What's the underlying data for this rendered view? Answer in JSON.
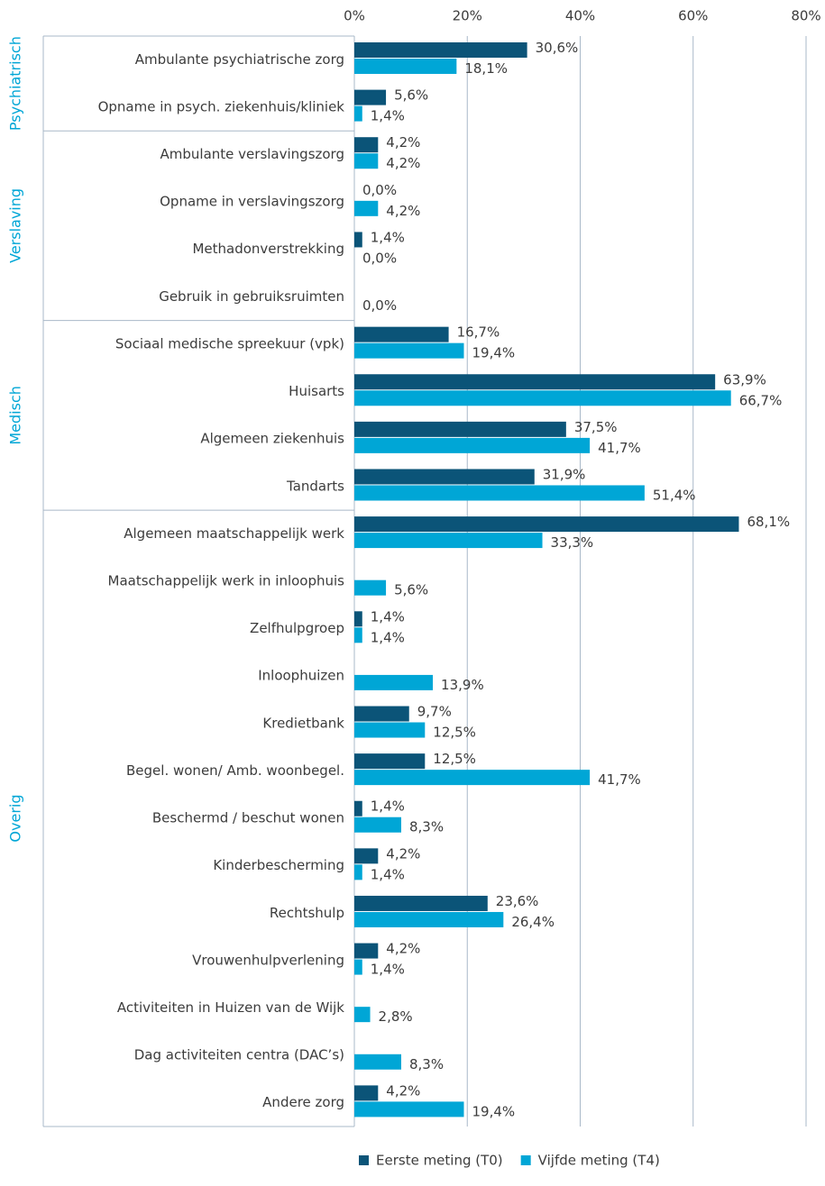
{
  "chart_data": {
    "type": "bar",
    "orientation": "horizontal",
    "groups": [
      {
        "name": "Psychiatrisch",
        "categories": [
          "Ambulante psychiatrische zorg",
          "Opname in psych. ziekenhuis/kliniek"
        ]
      },
      {
        "name": "Verslaving",
        "categories": [
          "Ambulante verslavingszorg",
          "Opname in verslavingszorg",
          "Methadonverstrekking",
          "Gebruik in gebruiksruimten"
        ]
      },
      {
        "name": "Medisch",
        "categories": [
          "Sociaal medische spreekuur (vpk)",
          "Huisarts",
          "Algemeen ziekenhuis",
          "Tandarts"
        ]
      },
      {
        "name": "Overig",
        "categories": [
          "Algemeen maatschappelijk werk",
          "Maatschappelijk werk in inloophuis",
          "Zelfhulpgroep",
          "Inloophuizen",
          "Kredietbank",
          "Begel. wonen/ Amb. woonbegel.",
          "Beschermd / beschut wonen",
          "Kinderbescherming",
          "Rechtshulp",
          "Vrouwenhulpverlening",
          "Activiteiten in Huizen van de Wijk",
          "Dag activiteiten centra (DAC’s)",
          "Andere zorg"
        ]
      }
    ],
    "series": [
      {
        "name": "Eerste meting (T0)",
        "color": "#0b5478",
        "values": [
          30.6,
          5.6,
          4.2,
          0.0,
          1.4,
          null,
          16.7,
          63.9,
          37.5,
          31.9,
          68.1,
          null,
          1.4,
          null,
          9.7,
          12.5,
          1.4,
          4.2,
          23.6,
          4.2,
          null,
          null,
          4.2
        ],
        "value_labels": [
          "30,6%",
          "5,6%",
          "4,2%",
          "0,0%",
          "1,4%",
          null,
          "16,7%",
          "63,9%",
          "37,5%",
          "31,9%",
          "68,1%",
          null,
          "1,4%",
          null,
          "9,7%",
          "12,5%",
          "1,4%",
          "4,2%",
          "23,6%",
          "4,2%",
          null,
          null,
          "4,2%"
        ]
      },
      {
        "name": "Vijfde meting (T4)",
        "color": "#00a6d6",
        "values": [
          18.1,
          1.4,
          4.2,
          4.2,
          0.0,
          0.0,
          19.4,
          66.7,
          41.7,
          51.4,
          33.3,
          5.6,
          1.4,
          13.9,
          12.5,
          41.7,
          8.3,
          1.4,
          26.4,
          1.4,
          2.8,
          8.3,
          19.4
        ],
        "value_labels": [
          "18,1%",
          "1,4%",
          "4,2%",
          "4,2%",
          "0,0%",
          "0,0%",
          "19,4%",
          "66,7%",
          "41,7%",
          "51,4%",
          "33,3%",
          "5,6%",
          "1,4%",
          "13,9%",
          "12,5%",
          "41,7%",
          "8,3%",
          "1,4%",
          "26,4%",
          "1,4%",
          "2,8%",
          "8,3%",
          "19,4%"
        ]
      }
    ],
    "xlim": [
      0,
      80
    ],
    "xticks": [
      {
        "value": 0,
        "label": "0%"
      },
      {
        "value": 20,
        "label": "20%"
      },
      {
        "value": 40,
        "label": "40%"
      },
      {
        "value": 60,
        "label": "60%"
      },
      {
        "value": 80,
        "label": "80%"
      }
    ],
    "grid": true,
    "legend": "bottom"
  }
}
